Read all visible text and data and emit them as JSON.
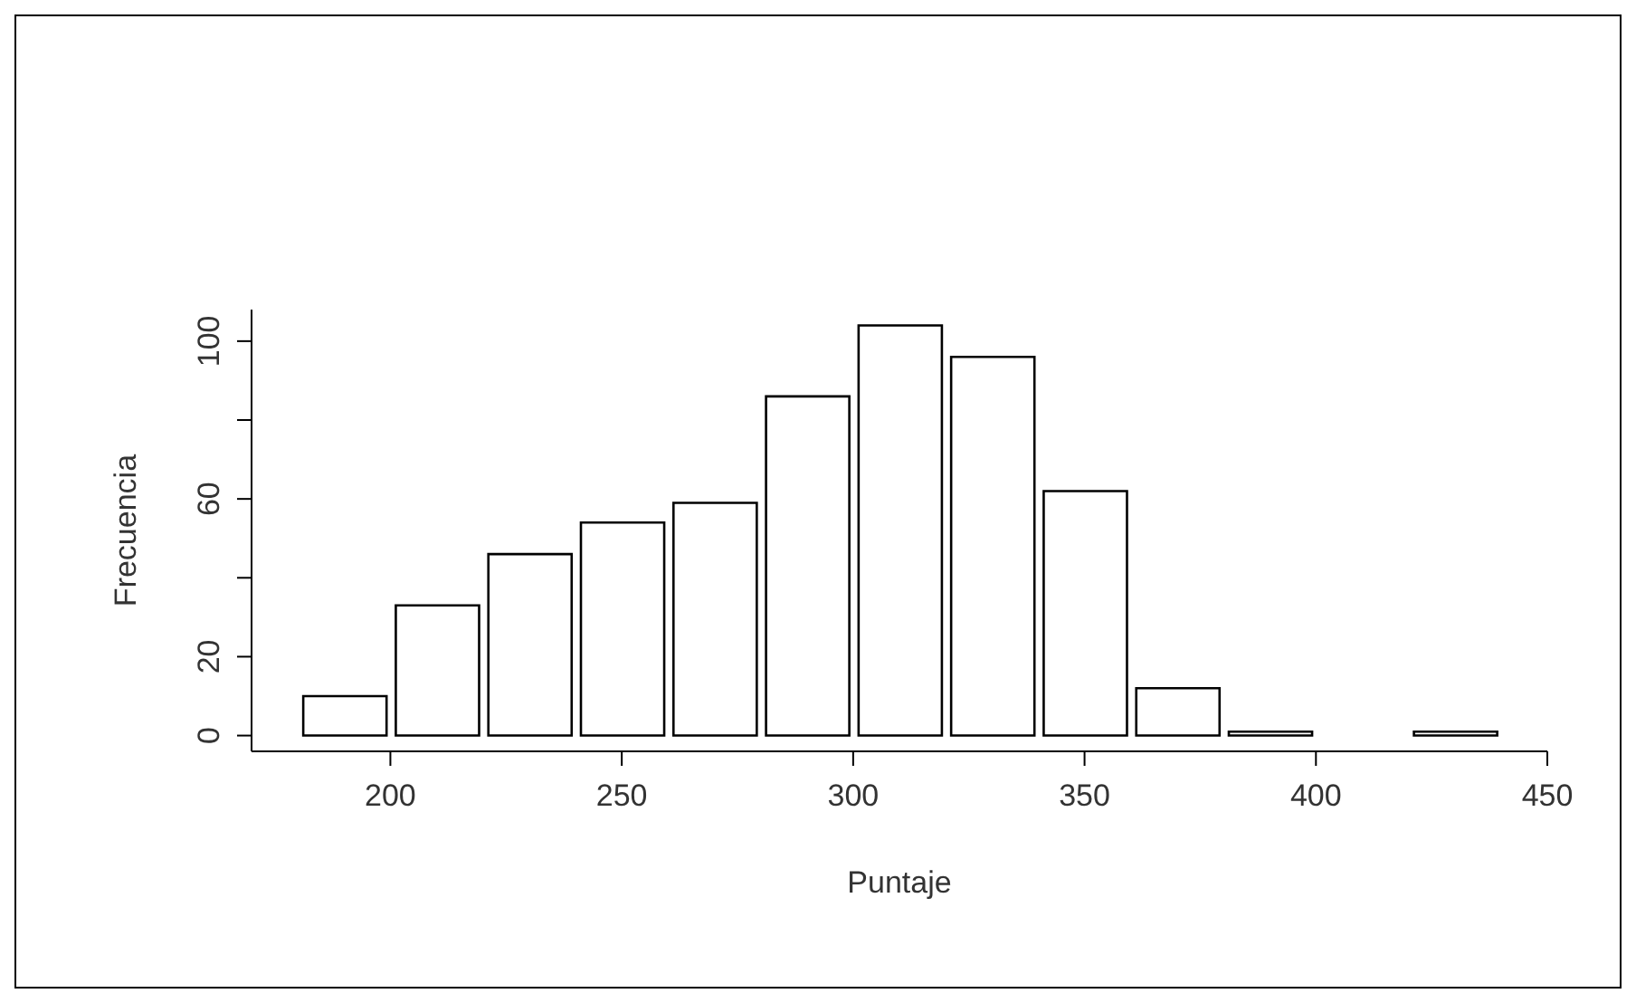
{
  "chart_data": {
    "type": "histogram",
    "xlabel": "Puntaje",
    "ylabel": "Frecuencia",
    "bins": [
      180,
      200,
      220,
      240,
      260,
      280,
      300,
      320,
      340,
      360,
      380,
      400,
      420,
      440
    ],
    "values": [
      10,
      33,
      46,
      54,
      59,
      86,
      104,
      96,
      62,
      12,
      1,
      0,
      1
    ],
    "color": "#ffffff",
    "xlim": [
      170,
      450
    ],
    "xticks": [
      200,
      250,
      300,
      350,
      400,
      450
    ],
    "ylim": [
      -4,
      108
    ],
    "yticks": [
      0,
      20,
      {
        "value": 40,
        "label": null
      },
      60,
      {
        "value": 80,
        "label": null
      },
      100
    ],
    "grid": false,
    "legend": false
  }
}
